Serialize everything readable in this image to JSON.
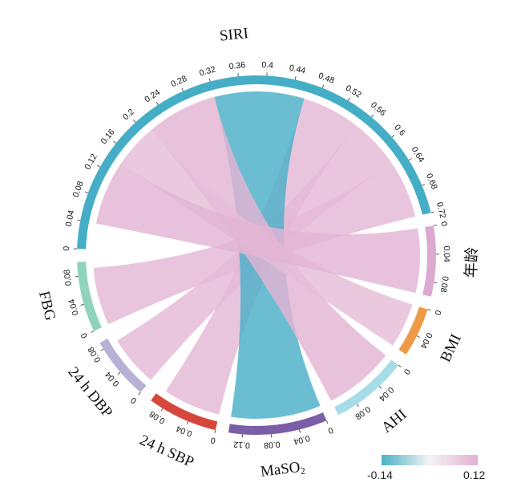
{
  "chart_data": {
    "type": "chord",
    "sectors": [
      {
        "name": "SIRI",
        "label": "SIRI",
        "color": "#45aec6",
        "max": 0.72,
        "ticks": [
          "0",
          "0.04",
          "0.08",
          "0.12",
          "0.16",
          "0.2",
          "0.24",
          "0.28",
          "0.32",
          "0.36",
          "0.4",
          "0.44",
          "0.48",
          "0.52",
          "0.56",
          "0.6",
          "0.64",
          "0.68",
          "0.72"
        ]
      },
      {
        "name": "age",
        "label": "年龄",
        "color": "#dcaad0",
        "max": 0.1,
        "ticks": [
          "0",
          "0.04",
          "0.08"
        ]
      },
      {
        "name": "BMI",
        "label": "BMI",
        "color": "#ef9a45",
        "max": 0.07,
        "ticks": [
          "0",
          "0.04"
        ]
      },
      {
        "name": "AHI",
        "label": "AHI",
        "color": "#a6dce8",
        "max": 0.11,
        "ticks": [
          "0",
          "0.04",
          "0.08"
        ]
      },
      {
        "name": "MaSO2",
        "label": "MaSO",
        "label_sub": "2",
        "color": "#7b5ea8",
        "max": 0.14,
        "ticks": [
          "0",
          "0.04",
          "0.08",
          "0.12"
        ]
      },
      {
        "name": "SBP",
        "label": "24 h SBP",
        "color": "#d6473b",
        "max": 0.1,
        "ticks": [
          "0",
          "0.04",
          "0.08"
        ]
      },
      {
        "name": "DBP",
        "label": "24 h DBP",
        "color": "#b9b0d6",
        "max": 0.09,
        "ticks": [
          "0",
          "0.04",
          "0.08"
        ]
      },
      {
        "name": "FBG",
        "label": "FBG",
        "color": "#8fd3bd",
        "max": 0.1,
        "ticks": [
          "0",
          "0.04",
          "0.08"
        ]
      }
    ],
    "links": [
      {
        "from": "SIRI",
        "to": "FBG",
        "value": 0.09
      },
      {
        "from": "SIRI",
        "to": "DBP",
        "value": 0.08
      },
      {
        "from": "SIRI",
        "to": "SBP",
        "value": 0.09
      },
      {
        "from": "SIRI",
        "to": "MaSO2",
        "value": -0.14
      },
      {
        "from": "SIRI",
        "to": "AHI",
        "value": 0.11
      },
      {
        "from": "SIRI",
        "to": "BMI",
        "value": 0.07
      },
      {
        "from": "SIRI",
        "to": "age",
        "value": 0.1
      }
    ],
    "legend": {
      "min_label": "-0.14",
      "max_label": "0.12",
      "min": -0.14,
      "max": 0.12,
      "color_low": "#4ab0c8",
      "color_mid": "#f4f4f4",
      "color_high": "#e2b0d2"
    }
  }
}
